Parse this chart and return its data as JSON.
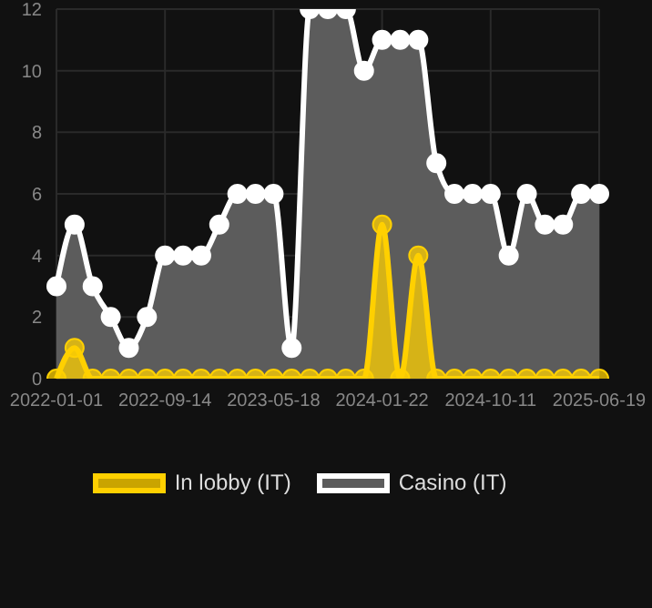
{
  "chart_data": {
    "type": "area",
    "categories": [
      "2022-01-01",
      null,
      null,
      null,
      null,
      null,
      "2022-09-14",
      null,
      null,
      null,
      null,
      null,
      "2023-05-18",
      null,
      null,
      null,
      null,
      null,
      "2024-01-22",
      null,
      null,
      null,
      null,
      null,
      "2024-10-11",
      null,
      null,
      null,
      null,
      null,
      "2025-06-19"
    ],
    "series": [
      {
        "name": "In lobby (IT)",
        "color": "#ffd000",
        "values": [
          0,
          1,
          0,
          0,
          0,
          0,
          0,
          0,
          0,
          0,
          0,
          0,
          0,
          0,
          0,
          0,
          0,
          0,
          5,
          0,
          4,
          0,
          0,
          0,
          0,
          0,
          0,
          0,
          0,
          0,
          0
        ]
      },
      {
        "name": "Casino (IT)",
        "color": "#ffffff",
        "values": [
          3,
          5,
          3,
          2,
          1,
          2,
          4,
          4,
          4,
          5,
          6,
          6,
          6,
          1,
          12,
          12,
          12,
          10,
          11,
          11,
          11,
          7,
          6,
          6,
          6,
          4,
          6,
          5,
          5,
          6,
          6
        ]
      }
    ],
    "ylim": [
      0,
      12
    ],
    "yticks": [
      0,
      2,
      4,
      6,
      8,
      10,
      12
    ],
    "grid": true,
    "legend": "bottom",
    "marker": "circle"
  }
}
